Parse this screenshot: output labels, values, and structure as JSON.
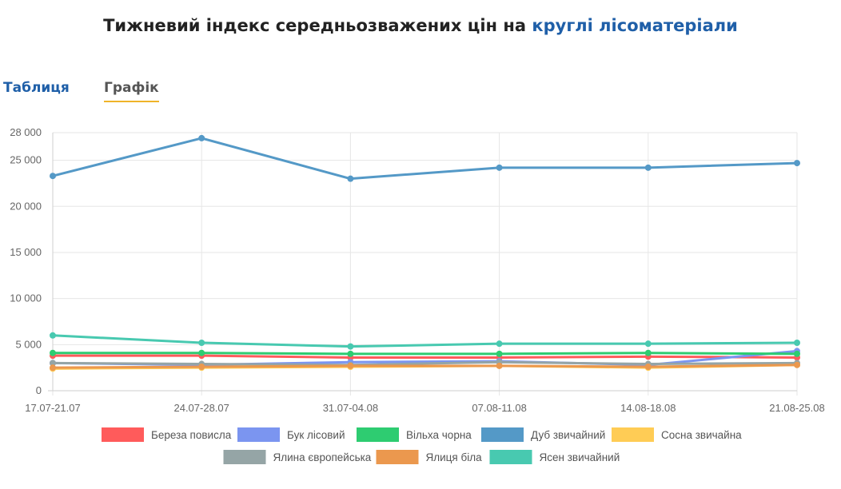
{
  "title": {
    "prefix": "Тижневий індекс середньозважених цін на",
    "link": "круглі лісоматеріали"
  },
  "tabs": {
    "table": "Таблиця",
    "chart": "Графік"
  },
  "chart_data": {
    "type": "line",
    "categories": [
      "17.07-21.07",
      "24.07-28.07",
      "31.07-04.08",
      "07.08-11.08",
      "14.08-18.08",
      "21.08-25.08"
    ],
    "ylim": [
      0,
      28000
    ],
    "yticks": [
      0,
      5000,
      10000,
      15000,
      20000,
      25000,
      28000
    ],
    "ytick_labels": [
      "0",
      "5 000",
      "10 000",
      "15 000",
      "20 000",
      "25 000",
      "28 000"
    ],
    "grid": true,
    "legend_position": "bottom",
    "series": [
      {
        "name": "Береза повисла",
        "color": "#ff5b5b",
        "values": [
          3800,
          3800,
          3600,
          3600,
          3700,
          3600
        ]
      },
      {
        "name": "Бук лісовий",
        "color": "#7b95f0",
        "values": [
          3000,
          2800,
          3100,
          3200,
          2800,
          4300
        ]
      },
      {
        "name": "Вільха чорна",
        "color": "#2ecc71",
        "values": [
          4100,
          4100,
          4000,
          4000,
          4100,
          4000
        ]
      },
      {
        "name": "Дуб звичайний",
        "color": "#5499c7",
        "values": [
          23300,
          27400,
          23000,
          24200,
          24200,
          24700
        ]
      },
      {
        "name": "Сосна звичайна",
        "color": "#ffcc55",
        "values": [
          2400,
          2500,
          2600,
          2700,
          2500,
          2800
        ]
      },
      {
        "name": "Ялина європейська",
        "color": "#95a5a6",
        "values": [
          3000,
          2900,
          2800,
          3100,
          2900,
          3000
        ]
      },
      {
        "name": "Ялиця біла",
        "color": "#eb984e",
        "values": [
          2500,
          2600,
          2700,
          2700,
          2600,
          2800
        ]
      },
      {
        "name": "Ясен звичайний",
        "color": "#48c9b0",
        "values": [
          6000,
          5200,
          4800,
          5100,
          5100,
          5200
        ]
      }
    ]
  }
}
